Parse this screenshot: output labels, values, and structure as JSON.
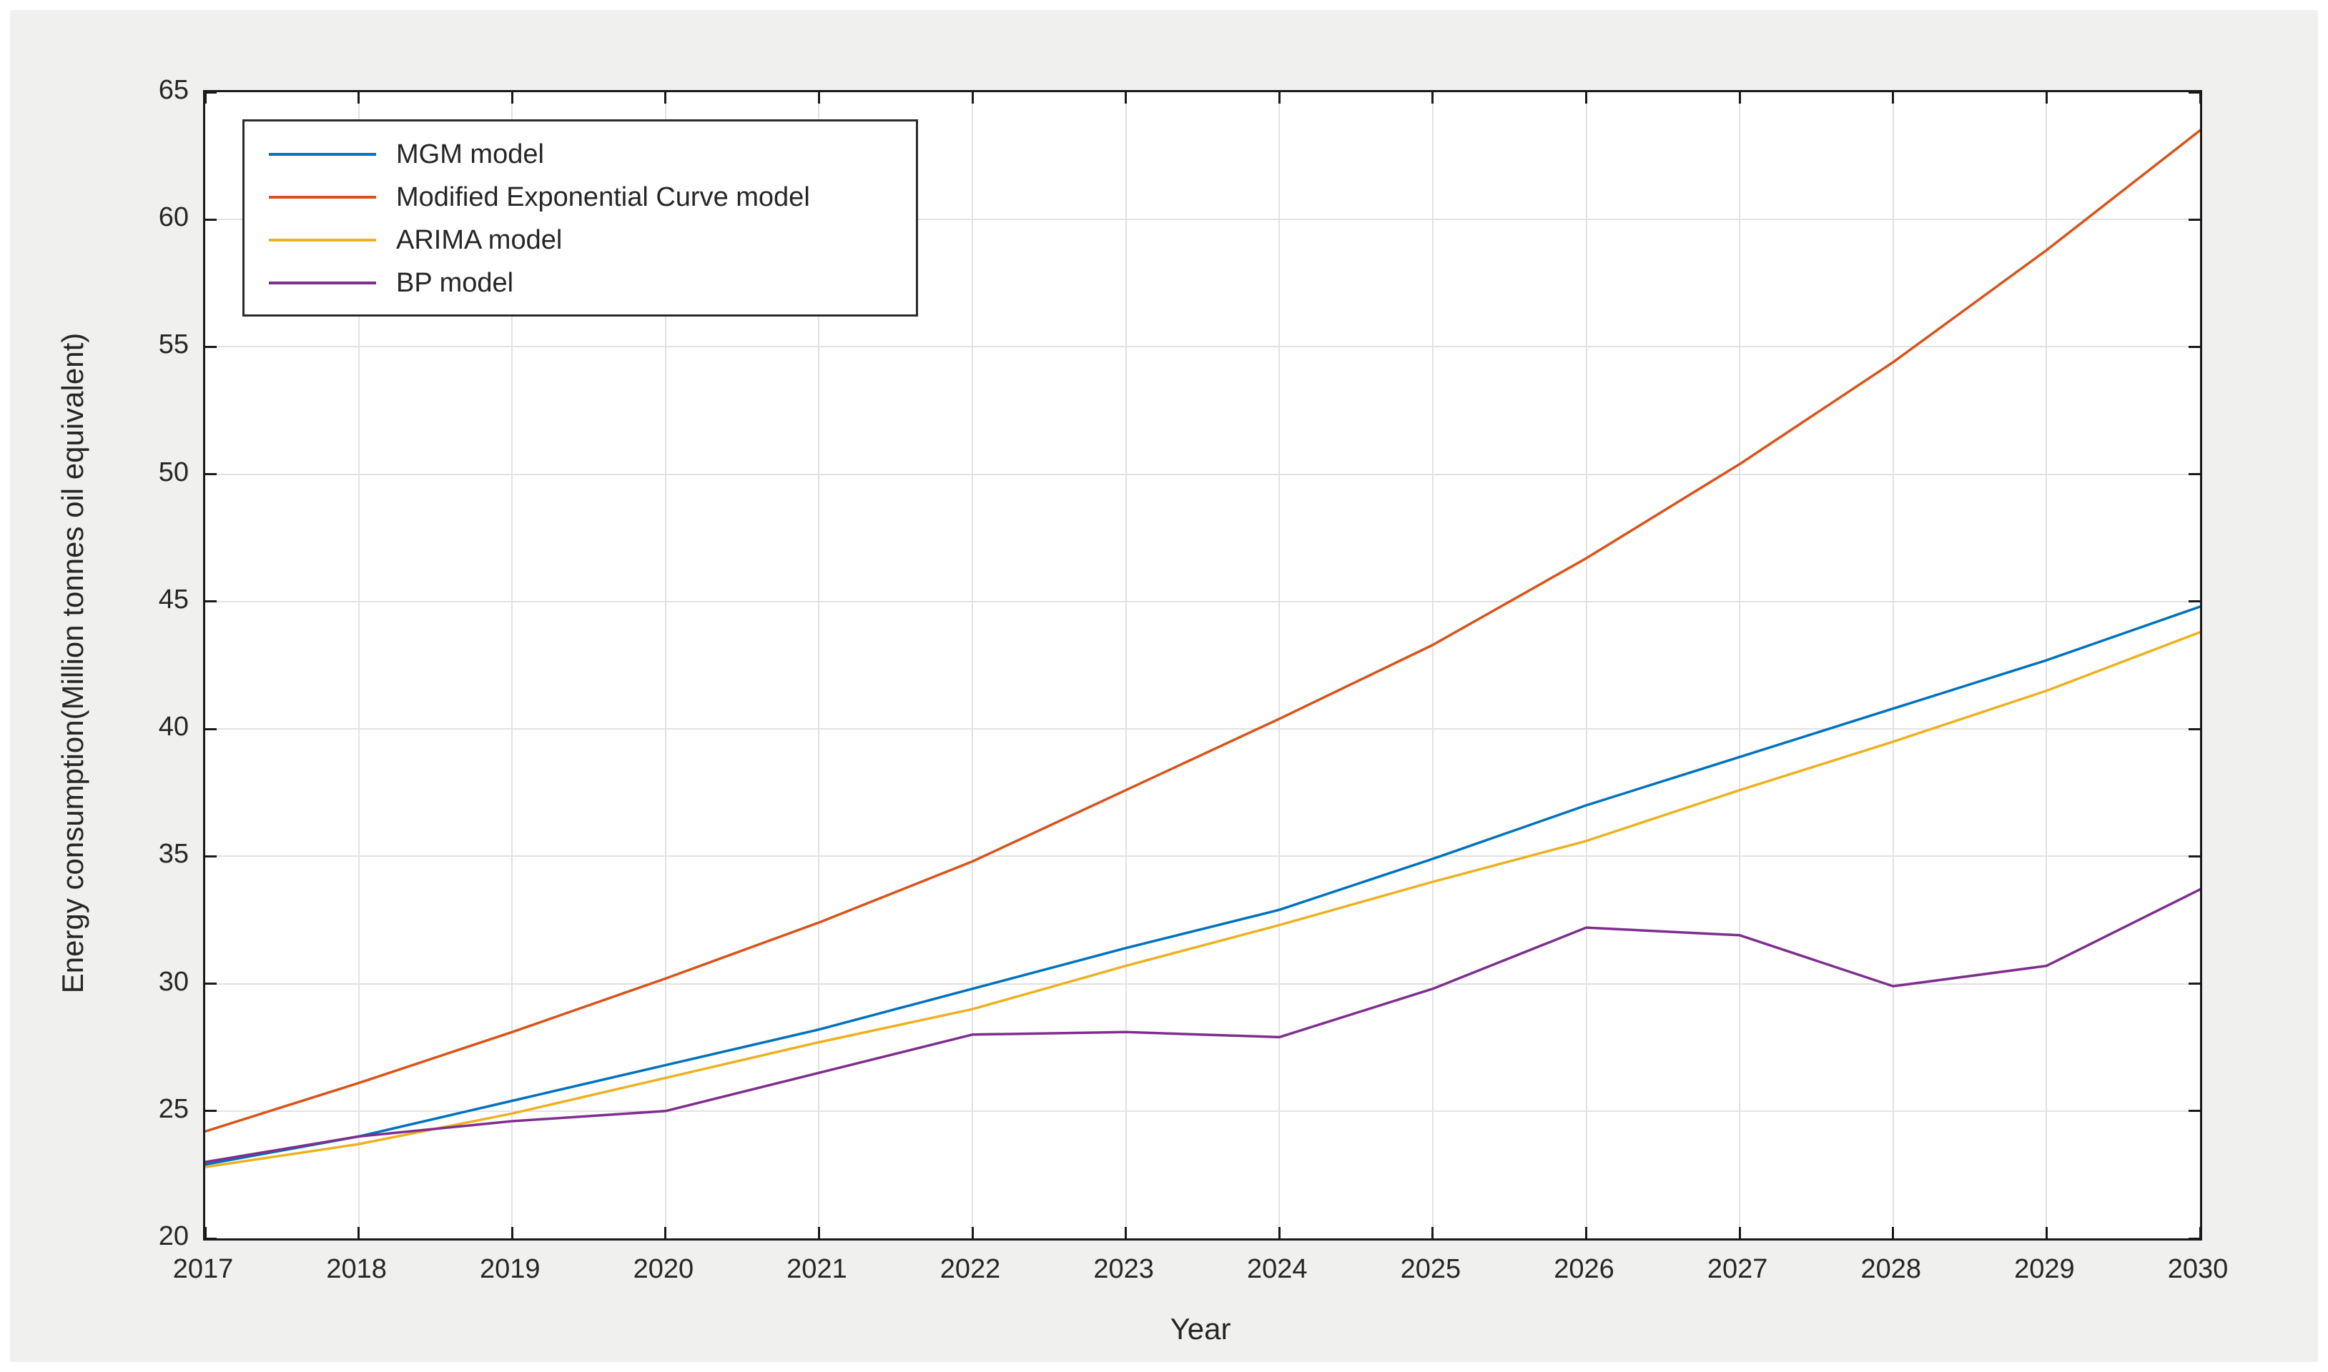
{
  "figure": {
    "background_color": "#f0f0ee",
    "plot_background_color": "#ffffff",
    "axis_color": "#1a1a1a",
    "grid_color": "#e2e2e2",
    "text_color": "#262626"
  },
  "chart_data": {
    "type": "line",
    "title": "",
    "xlabel": "Year",
    "ylabel": "Energy consumption(Million tonnes oil equivalent)",
    "x": [
      2017,
      2018,
      2019,
      2020,
      2021,
      2022,
      2023,
      2024,
      2025,
      2026,
      2027,
      2028,
      2029,
      2030
    ],
    "xticks": [
      "2017",
      "2018",
      "2019",
      "2020",
      "2021",
      "2022",
      "2023",
      "2024",
      "2025",
      "2026",
      "2027",
      "2028",
      "2029",
      "2030"
    ],
    "yticks": [
      "20",
      "25",
      "30",
      "35",
      "40",
      "45",
      "50",
      "55",
      "60",
      "65"
    ],
    "xlim": [
      2017,
      2030
    ],
    "ylim": [
      20,
      65
    ],
    "grid": true,
    "legend_position": "top-left",
    "series": [
      {
        "name": "MGM model",
        "color": "#0072BD",
        "values": [
          22.9,
          24.0,
          25.4,
          26.8,
          28.2,
          29.8,
          31.4,
          32.9,
          34.9,
          37.0,
          38.9,
          40.8,
          42.7,
          44.8
        ]
      },
      {
        "name": "Modified Exponential Curve model",
        "color": "#D95319",
        "values": [
          24.2,
          26.1,
          28.1,
          30.2,
          32.4,
          34.8,
          37.6,
          40.4,
          43.3,
          46.7,
          50.4,
          54.4,
          58.8,
          63.5
        ]
      },
      {
        "name": "ARIMA model",
        "color": "#EDB120",
        "values": [
          22.8,
          23.7,
          24.9,
          26.3,
          27.7,
          29.0,
          30.7,
          32.3,
          34.0,
          35.6,
          37.6,
          39.5,
          41.5,
          43.8
        ]
      },
      {
        "name": "BP model",
        "color": "#7E2F8E",
        "values": [
          23.0,
          24.0,
          24.6,
          25.0,
          26.5,
          28.0,
          28.1,
          27.9,
          29.8,
          32.2,
          31.9,
          29.9,
          30.7,
          33.7
        ]
      }
    ]
  }
}
